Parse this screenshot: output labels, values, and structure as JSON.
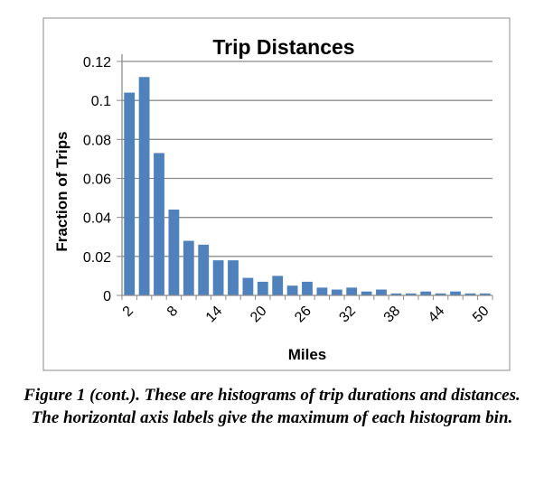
{
  "chart_data": {
    "type": "bar",
    "title": "Trip Distances",
    "xlabel": "Miles",
    "ylabel": "Fraction of Trips",
    "ylim": [
      0,
      0.12
    ],
    "yticks": [
      "0",
      "0.02",
      "0.04",
      "0.06",
      "0.08",
      "0.1",
      "0.12"
    ],
    "ytick_values": [
      0,
      0.02,
      0.04,
      0.06,
      0.08,
      0.1,
      0.12
    ],
    "grid": true,
    "categories": [
      2,
      4,
      6,
      8,
      10,
      12,
      14,
      16,
      18,
      20,
      22,
      24,
      26,
      28,
      30,
      32,
      34,
      36,
      38,
      40,
      42,
      44,
      46,
      48,
      50
    ],
    "xtick_labels": [
      "2",
      "8",
      "14",
      "20",
      "26",
      "32",
      "38",
      "44",
      "50"
    ],
    "xtick_values": [
      2,
      8,
      14,
      20,
      26,
      32,
      38,
      44,
      50
    ],
    "values": [
      0.104,
      0.112,
      0.073,
      0.044,
      0.028,
      0.026,
      0.018,
      0.018,
      0.009,
      0.007,
      0.01,
      0.005,
      0.007,
      0.004,
      0.003,
      0.004,
      0.002,
      0.003,
      0.001,
      0.001,
      0.002,
      0.001,
      0.002,
      0.001,
      0.001
    ],
    "colors": {
      "bar": "#4f81bd",
      "grid": "#8c8c8c",
      "axis": "#8c8c8c",
      "frame": "#8c8c8c"
    }
  },
  "caption": "Figure 1 (cont.). These are histograms of trip durations and distances. The horizontal axis labels give the maximum of each histogram bin."
}
